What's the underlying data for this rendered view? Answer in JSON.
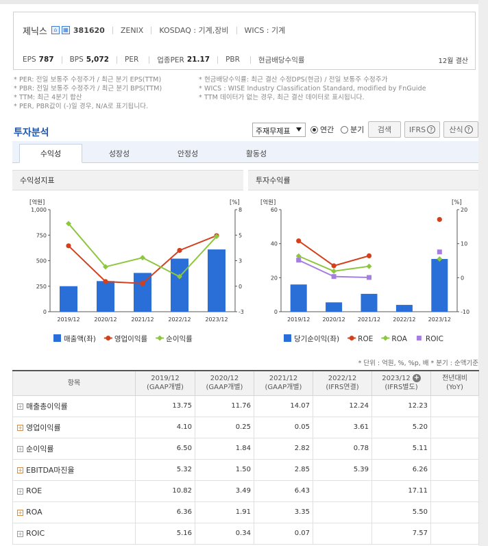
{
  "company": {
    "name": "제닉스",
    "code": "381620",
    "english": "ZENIX",
    "kosdaq": "KOSDAQ : 기계,장비",
    "wics": "WICS : 기계",
    "home_icon": "home-icon",
    "doc_icon": "building-icon"
  },
  "metrics": {
    "eps_label": "EPS",
    "eps_value": "787",
    "bps_label": "BPS",
    "bps_value": "5,072",
    "per_label": "PER",
    "per_value": "",
    "sector_per_label": "업종PER",
    "sector_per_value": "21.17",
    "pbr_label": "PBR",
    "pbr_value": "",
    "div_label": "현금배당수익률",
    "div_value": "",
    "settlement": "12월 결산"
  },
  "notes_left": [
    "* PER: 전일 보통주 수정주가 / 최근 분기 EPS(TTM)",
    "* PBR: 전일 보통주 수정주가 / 최근 분기 BPS(TTM)",
    "* TTM: 최근 4분기 합산",
    "* PER, PBR값이 (-)일 경우, N/A로 표기됩니다."
  ],
  "notes_right": [
    "* 현금배당수익률: 최근 결산 수정DPS(현금) / 전일 보통주 수정주가",
    "* WICS : WISE Industry Classification Standard, modified by FnGuide",
    "* TTM 데이터가 없는 경우, 최근 결산 데이터로 표시됩니다."
  ],
  "section": {
    "title": "투자분석",
    "report_select": "주재무제표",
    "radio_annual": "연간",
    "radio_quarter": "분기",
    "search_button": "검색",
    "ifrs_button": "IFRS",
    "formula_button": "산식"
  },
  "tabs": [
    "수익성",
    "성장성",
    "안정성",
    "활동성"
  ],
  "panel_left": {
    "title": "수익성지표"
  },
  "panel_right": {
    "title": "투자수익률"
  },
  "chart_data": [
    {
      "type": "bar",
      "categories": [
        "2019/12",
        "2020/12",
        "2021/12",
        "2022/12",
        "2023/12"
      ],
      "y_left_unit": "[억원]",
      "y_right_unit": "[%]",
      "y_left_ticks": [
        "0",
        "250",
        "500",
        "750",
        "1,000"
      ],
      "y_right_ticks": [
        "-3",
        "0",
        "3",
        "5",
        "8"
      ],
      "ylim_left": [
        0,
        1000
      ],
      "ylim_right": [
        -3,
        8
      ],
      "series": [
        {
          "name": "매출액(좌)",
          "kind": "bar",
          "axis": "left",
          "color": "#2a6ed8",
          "values": [
            250,
            300,
            380,
            520,
            610
          ]
        },
        {
          "name": "영업이익률",
          "kind": "line",
          "axis": "right",
          "color": "#d2401c",
          "values": [
            4.1,
            0.25,
            0.05,
            3.61,
            5.2
          ]
        },
        {
          "name": "순이익률",
          "kind": "line",
          "axis": "right",
          "color": "#8dc63f",
          "values": [
            6.5,
            1.84,
            2.82,
            0.78,
            5.11
          ]
        }
      ]
    },
    {
      "type": "bar",
      "categories": [
        "2019/12",
        "2020/12",
        "2021/12",
        "2022/12",
        "2023/12"
      ],
      "y_left_unit": "[억원]",
      "y_right_unit": "[%]",
      "y_left_ticks": [
        "0",
        "20",
        "40",
        "60"
      ],
      "y_right_ticks": [
        "-10",
        "0",
        "10",
        "20"
      ],
      "ylim_left": [
        0,
        60
      ],
      "ylim_right": [
        -10,
        20
      ],
      "series": [
        {
          "name": "당기순이익(좌)",
          "kind": "bar",
          "axis": "left",
          "color": "#2a6ed8",
          "values": [
            16,
            5.5,
            10.5,
            4,
            31
          ]
        },
        {
          "name": "ROE",
          "kind": "line",
          "axis": "right",
          "color": "#d2401c",
          "values": [
            10.82,
            3.49,
            6.43,
            null,
            17.11
          ]
        },
        {
          "name": "ROA",
          "kind": "line",
          "axis": "right",
          "color": "#8dc63f",
          "values": [
            6.36,
            1.91,
            3.35,
            null,
            5.5
          ]
        },
        {
          "name": "ROIC",
          "kind": "line",
          "axis": "right",
          "color": "#a57fe0",
          "marker": "square",
          "values": [
            5.16,
            0.34,
            0.07,
            null,
            7.57
          ]
        }
      ]
    }
  ],
  "units_note": "* 단위 : 억원, %, %p, 배     * 분기 : 순액기준",
  "table": {
    "header_item": "항목",
    "columns": [
      {
        "year": "2019/12",
        "basis": "(GAAP개별)"
      },
      {
        "year": "2020/12",
        "basis": "(GAAP개별)"
      },
      {
        "year": "2021/12",
        "basis": "(GAAP개별)"
      },
      {
        "year": "2022/12",
        "basis": "(IFRS연결)"
      },
      {
        "year": "2023/12",
        "basis": "(IFRS별도)"
      },
      {
        "year": "전년대비",
        "basis": "(YoY)"
      }
    ],
    "rows": [
      {
        "label": "매출총이익률",
        "values": [
          "13.75",
          "11.76",
          "14.07",
          "12.24",
          "12.23",
          ""
        ]
      },
      {
        "label": "영업이익률",
        "values": [
          "4.10",
          "0.25",
          "0.05",
          "3.61",
          "5.20",
          ""
        ]
      },
      {
        "label": "순이익률",
        "values": [
          "6.50",
          "1.84",
          "2.82",
          "0.78",
          "5.11",
          ""
        ]
      },
      {
        "label": "EBITDA마진율",
        "values": [
          "5.32",
          "1.50",
          "2.85",
          "5.39",
          "6.26",
          ""
        ]
      },
      {
        "label": "ROE",
        "values": [
          "10.82",
          "3.49",
          "6.43",
          "",
          "17.11",
          ""
        ]
      },
      {
        "label": "ROA",
        "values": [
          "6.36",
          "1.91",
          "3.35",
          "",
          "5.50",
          ""
        ]
      },
      {
        "label": "ROIC",
        "values": [
          "5.16",
          "0.34",
          "0.07",
          "",
          "7.57",
          ""
        ]
      }
    ]
  }
}
